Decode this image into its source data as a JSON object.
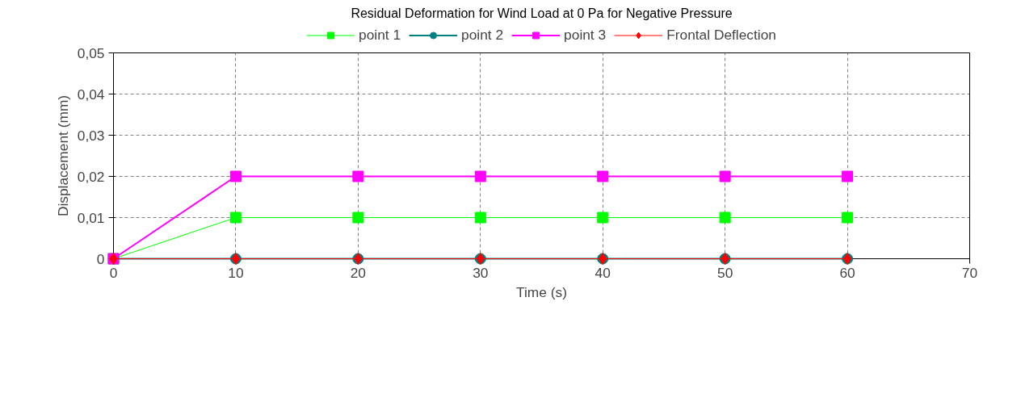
{
  "chart_data": {
    "type": "line",
    "title": "Residual Deformation for Wind Load at 0 Pa for Negative Pressure",
    "xlabel": "Time (s)",
    "ylabel": "Displacement (mm)",
    "x": [
      0,
      10,
      20,
      30,
      40,
      50,
      60
    ],
    "xlim": [
      0,
      70
    ],
    "xticks": [
      0,
      10,
      20,
      30,
      40,
      50,
      60,
      70
    ],
    "ylim": [
      0,
      0.05
    ],
    "yticks": [
      {
        "value": 0,
        "label": "0"
      },
      {
        "value": 0.01,
        "label": "0,01"
      },
      {
        "value": 0.02,
        "label": "0,02"
      },
      {
        "value": 0.03,
        "label": "0,03"
      },
      {
        "value": 0.04,
        "label": "0,04"
      },
      {
        "value": 0.05,
        "label": "0,05"
      }
    ],
    "grid": true,
    "legend": "top",
    "line_style": "solid",
    "series": [
      {
        "name": "point 1",
        "color": "#00ff00",
        "marker": "square",
        "values": [
          0,
          0.01,
          0.01,
          0.01,
          0.01,
          0.01,
          0.01
        ]
      },
      {
        "name": "point 2",
        "color": "#008080",
        "marker": "circle",
        "values": [
          0,
          0,
          0,
          0,
          0,
          0,
          0
        ]
      },
      {
        "name": "point 3",
        "color": "#ff00ff",
        "marker": "square",
        "values": [
          0,
          0.02,
          0.02,
          0.02,
          0.02,
          0.02,
          0.02
        ]
      },
      {
        "name": "Frontal Deflection",
        "color": "#ff0000",
        "marker": "diamond",
        "values": [
          0,
          0,
          0,
          0,
          0,
          0,
          0
        ]
      }
    ]
  }
}
